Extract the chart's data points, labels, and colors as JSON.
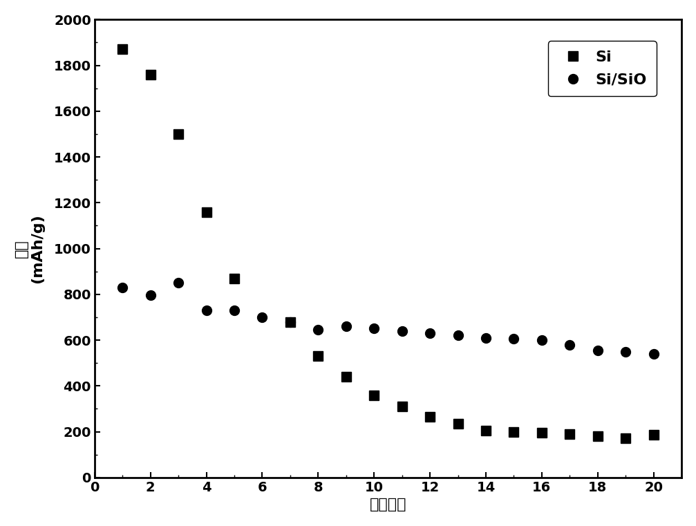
{
  "si_x": [
    1,
    2,
    3,
    4,
    5,
    7,
    8,
    9,
    10,
    11,
    12,
    13,
    14,
    15,
    16,
    17,
    18,
    19,
    20
  ],
  "si_y": [
    1870,
    1760,
    1500,
    1160,
    870,
    680,
    530,
    440,
    360,
    310,
    265,
    235,
    205,
    200,
    195,
    190,
    180,
    170,
    185
  ],
  "sio_x": [
    1,
    2,
    3,
    4,
    5,
    6,
    7,
    8,
    9,
    10,
    11,
    12,
    13,
    14,
    15,
    16,
    17,
    18,
    19,
    20
  ],
  "sio_y": [
    830,
    795,
    850,
    730,
    730,
    700,
    680,
    645,
    660,
    650,
    640,
    630,
    620,
    610,
    605,
    600,
    580,
    555,
    550,
    540
  ],
  "xlabel": "循环次数",
  "ylabel_chinese": "容量",
  "ylabel_english": "(mAh/g)",
  "xlim": [
    0,
    21
  ],
  "ylim": [
    0,
    2000
  ],
  "xticks": [
    0,
    2,
    4,
    6,
    8,
    10,
    12,
    14,
    16,
    18,
    20
  ],
  "yticks": [
    0,
    200,
    400,
    600,
    800,
    1000,
    1200,
    1400,
    1600,
    1800,
    2000
  ],
  "legend_si": "Si",
  "legend_sio": "Si/SiO",
  "marker_si": "s",
  "marker_sio": "o",
  "color": "#000000",
  "background": "#ffffff",
  "markersize": 10,
  "figsize": [
    10.07,
    7.61
  ],
  "dpi": 100
}
